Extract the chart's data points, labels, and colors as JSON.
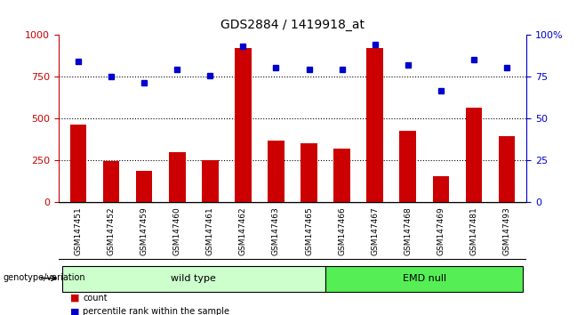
{
  "title": "GDS2884 / 1419918_at",
  "samples": [
    "GSM147451",
    "GSM147452",
    "GSM147459",
    "GSM147460",
    "GSM147461",
    "GSM147462",
    "GSM147463",
    "GSM147465",
    "GSM147466",
    "GSM147467",
    "GSM147468",
    "GSM147469",
    "GSM147481",
    "GSM147493"
  ],
  "counts": [
    460,
    245,
    185,
    295,
    248,
    920,
    368,
    348,
    318,
    920,
    425,
    150,
    565,
    390
  ],
  "percentiles": [
    84,
    74.8,
    71,
    79,
    75.5,
    93,
    80,
    79,
    79,
    94,
    82,
    66.5,
    85,
    80
  ],
  "group1_label": "wild type",
  "group2_label": "EMD null",
  "group1_count": 8,
  "group2_count": 6,
  "bar_color": "#CC0000",
  "dot_color": "#0000CC",
  "left_axis_color": "#CC0000",
  "right_axis_color": "#0000CC",
  "ylim_left": [
    0,
    1000
  ],
  "ylim_right": [
    0,
    100
  ],
  "yticks_left": [
    0,
    250,
    500,
    750,
    1000
  ],
  "yticks_right": [
    0,
    25,
    50,
    75,
    100
  ],
  "grid_values": [
    250,
    500,
    750
  ],
  "legend_count_label": "count",
  "legend_pct_label": "percentile rank within the sample",
  "genotype_label": "genotype/variation",
  "group1_color": "#CCFFCC",
  "group2_color": "#55EE55",
  "tick_area_color": "#CCCCCC",
  "bar_width": 0.5
}
